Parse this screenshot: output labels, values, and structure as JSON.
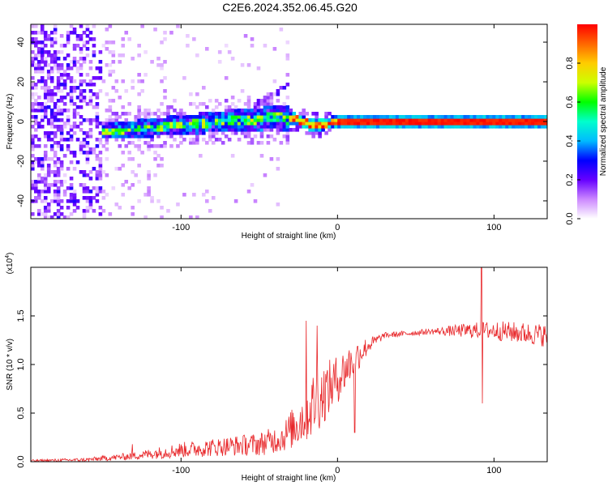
{
  "title": "C2E6.2024.352.06.45.G20",
  "chart_data": [
    {
      "type": "heatmap",
      "xlabel": "Height of straight line (km)",
      "ylabel": "Frequency (Hz)",
      "xlim": [
        -196,
        134
      ],
      "ylim": [
        -49,
        49
      ],
      "xticks": [
        -100,
        0,
        100
      ],
      "yticks": [
        -40,
        -20,
        0,
        20,
        40
      ],
      "colorbar": {
        "label": "Normalized spectral amplitude",
        "range": [
          0,
          1
        ],
        "ticks": [
          0.0,
          0.2,
          0.4,
          0.6,
          0.8
        ],
        "colormap": [
          "#ffffff",
          "#cc88ff",
          "#6600ff",
          "#0000ff",
          "#00bbff",
          "#00ffcc",
          "#00ff00",
          "#ccff00",
          "#ffcc00",
          "#ff6600",
          "#ff0000"
        ]
      },
      "ridge": [
        {
          "x": -150,
          "f": -5
        },
        {
          "x": -120,
          "f": -3
        },
        {
          "x": -90,
          "f": -1
        },
        {
          "x": -60,
          "f": 1
        },
        {
          "x": -40,
          "f": 2
        },
        {
          "x": -25,
          "f": 1
        },
        {
          "x": -15,
          "f": -2
        },
        {
          "x": 0,
          "f": 0
        },
        {
          "x": 50,
          "f": 0
        },
        {
          "x": 134,
          "f": 0
        }
      ],
      "grid": false
    },
    {
      "type": "line",
      "xlabel": "Height of straight line (km)",
      "ylabel": "SNR (10 * v/v)",
      "y_multiplier": "(x10",
      "y_multiplier_exp": "4",
      "y_multiplier_close": ")",
      "xlim": [
        -196,
        134
      ],
      "ylim": [
        0,
        2.0
      ],
      "xticks": [
        -100,
        0,
        100
      ],
      "yticks": [
        0.0,
        0.5,
        1.0,
        1.5
      ],
      "series": [
        {
          "color": "#e8282b",
          "envelope": [
            {
              "x": -196,
              "y": 0.01,
              "amp": 0.01
            },
            {
              "x": -160,
              "y": 0.02,
              "amp": 0.02
            },
            {
              "x": -130,
              "y": 0.06,
              "amp": 0.04
            },
            {
              "x": -100,
              "y": 0.12,
              "amp": 0.08
            },
            {
              "x": -70,
              "y": 0.16,
              "amp": 0.1
            },
            {
              "x": -50,
              "y": 0.18,
              "amp": 0.12
            },
            {
              "x": -35,
              "y": 0.25,
              "amp": 0.15
            },
            {
              "x": -25,
              "y": 0.4,
              "amp": 0.25
            },
            {
              "x": -15,
              "y": 0.6,
              "amp": 0.35
            },
            {
              "x": 0,
              "y": 0.85,
              "amp": 0.25
            },
            {
              "x": 10,
              "y": 1.05,
              "amp": 0.2
            },
            {
              "x": 20,
              "y": 1.2,
              "amp": 0.08
            },
            {
              "x": 30,
              "y": 1.3,
              "amp": 0.03
            },
            {
              "x": 60,
              "y": 1.34,
              "amp": 0.03
            },
            {
              "x": 85,
              "y": 1.35,
              "amp": 0.08
            },
            {
              "x": 100,
              "y": 1.35,
              "amp": 0.1
            },
            {
              "x": 134,
              "y": 1.3,
              "amp": 0.12
            }
          ],
          "spikes": [
            {
              "x": -131,
              "y": 0.18
            },
            {
              "x": -20,
              "y": 1.45
            },
            {
              "x": -13,
              "y": 1.4
            },
            {
              "x": 11,
              "y": 0.3
            },
            {
              "x": 92,
              "y": 2.0
            },
            {
              "x": 92.5,
              "y": 0.6
            }
          ]
        }
      ],
      "grid": false
    }
  ]
}
